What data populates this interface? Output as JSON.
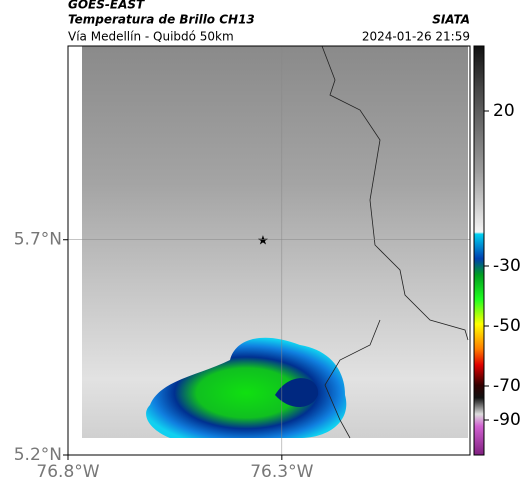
{
  "header": {
    "source": "GOES-EAST",
    "title": "Temperatura de Brillo CH13",
    "org": "SIATA",
    "subtitle": "Vía Medellín - Quibdó 50km",
    "timestamp": "2024-01-26 21:59"
  },
  "map": {
    "xlim": [
      -76.8,
      -75.86
    ],
    "ylim": [
      5.2,
      6.15
    ],
    "xticks": [
      {
        "value": -76.8,
        "label": "76.8°W"
      },
      {
        "value": -76.3,
        "label": "76.3°W"
      }
    ],
    "yticks": [
      {
        "value": 5.2,
        "label": "5.2°N"
      },
      {
        "value": 5.7,
        "label": "5.7°N"
      }
    ],
    "grid": true
  },
  "colorbar": {
    "ticks": [
      20,
      -30,
      -50,
      -70,
      -90
    ]
  }
}
